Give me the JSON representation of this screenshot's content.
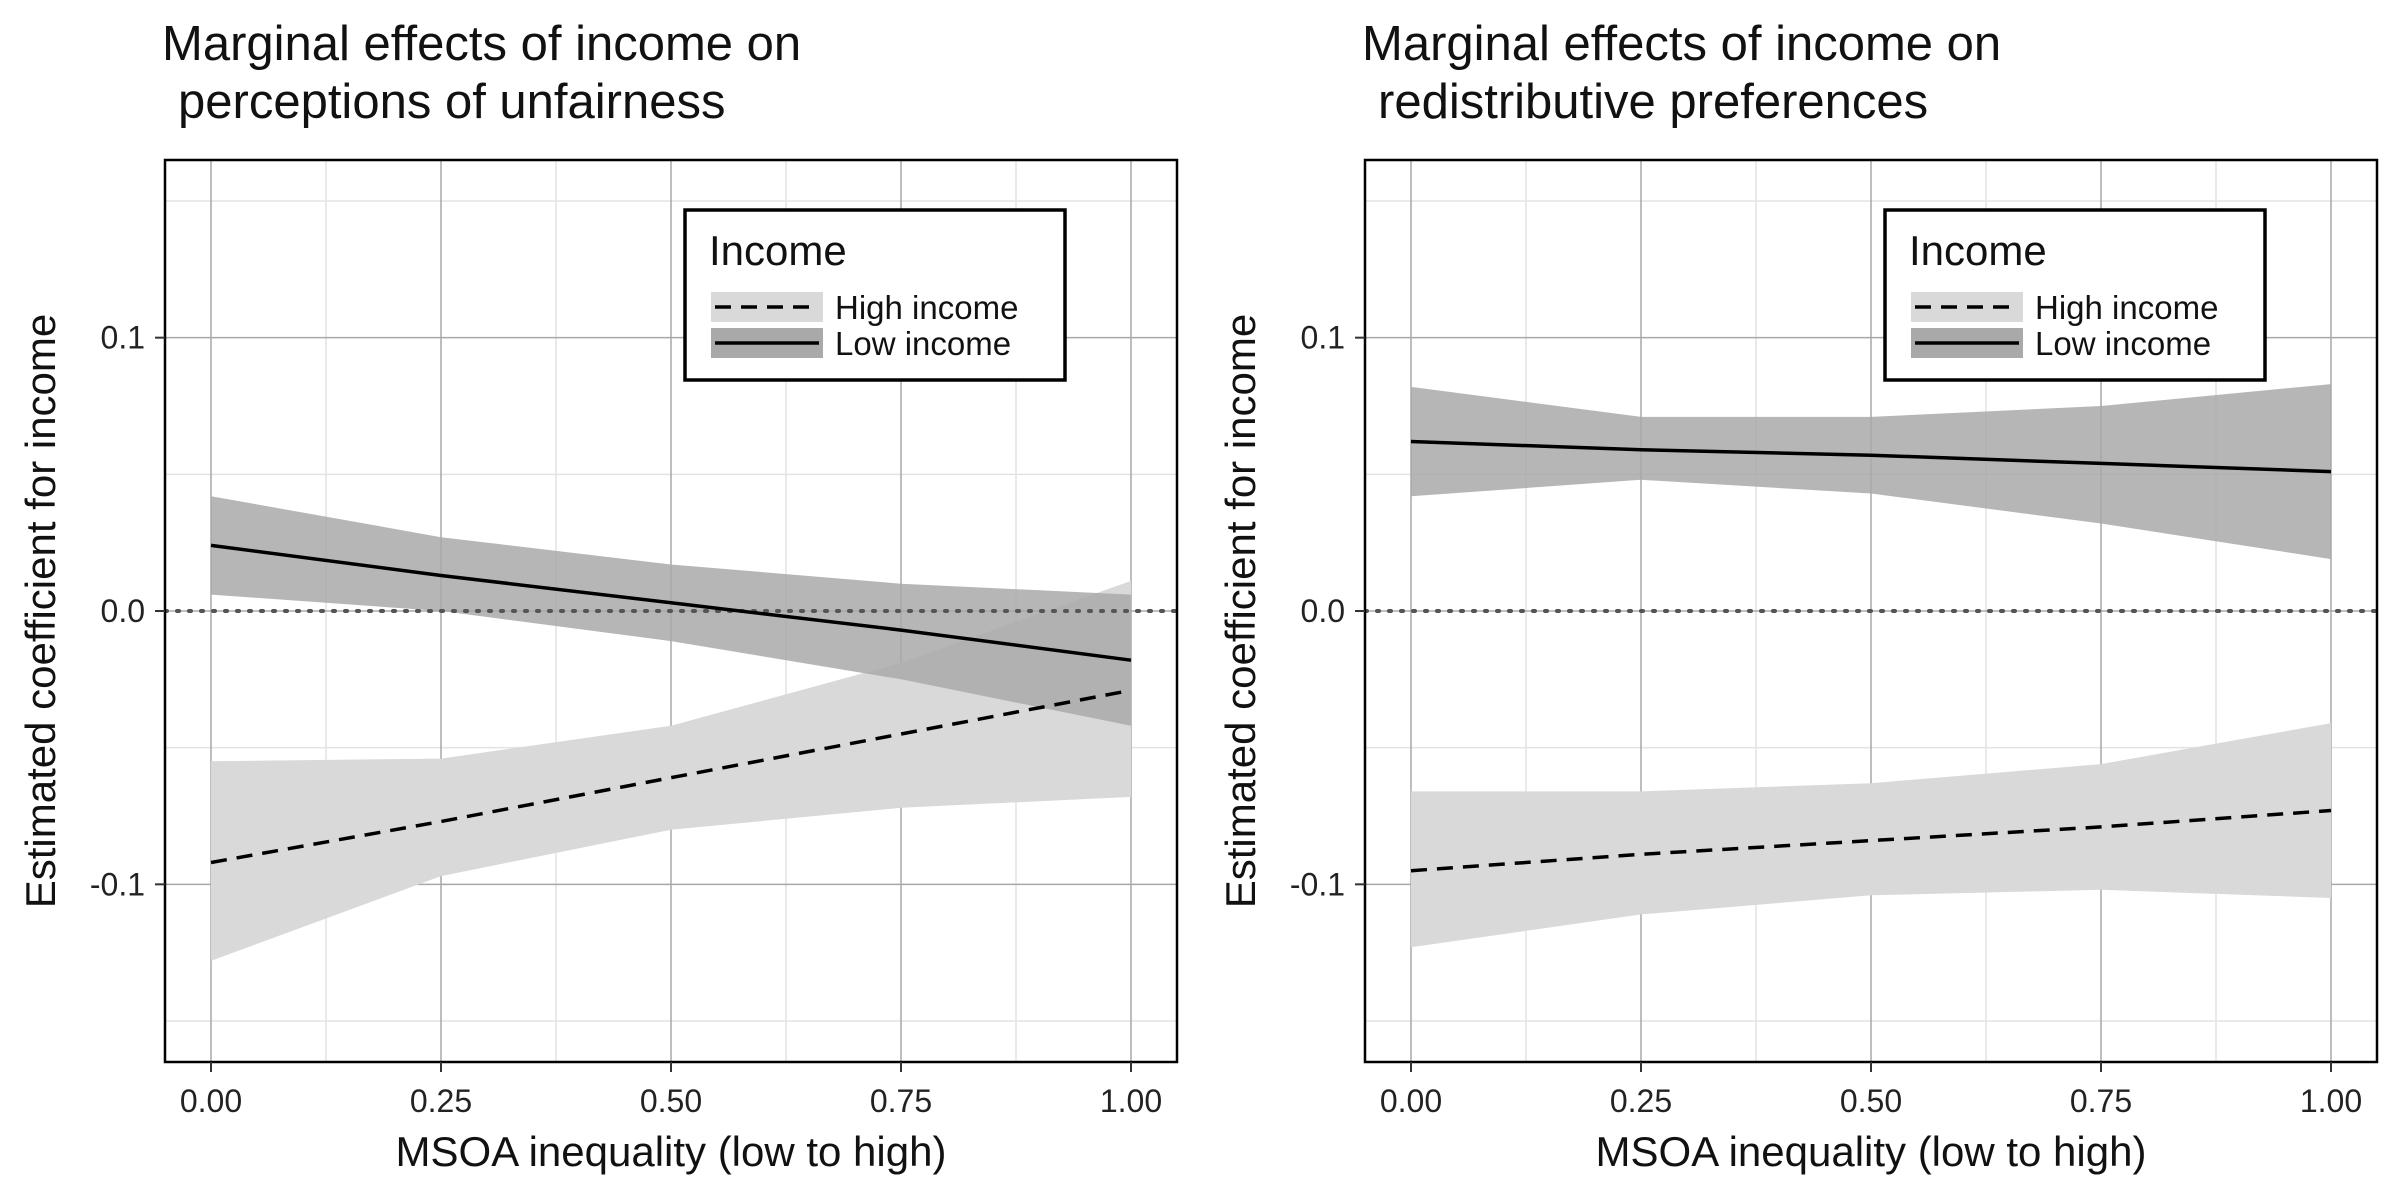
{
  "chart_data": [
    {
      "type": "line",
      "title": "Marginal effects of income on",
      "title_line2": "perceptions of unfairness",
      "xlabel": "MSOA inequality (low to high)",
      "ylabel": "Estimated coefficient for income",
      "xlim": [
        -0.05,
        1.05
      ],
      "ylim": [
        -0.165,
        0.165
      ],
      "x_ticks": [
        0,
        0.25,
        0.5,
        0.75,
        1
      ],
      "x_tick_labels": [
        "0.00",
        "0.25",
        "0.50",
        "0.75",
        "1.00"
      ],
      "y_ticks": [
        -0.1,
        0,
        0.1
      ],
      "y_tick_labels": [
        "-0.1",
        "0.0",
        "0.1"
      ],
      "grid": true,
      "reference_line": 0,
      "legend": {
        "title": "Income",
        "position": "top-right"
      },
      "series": [
        {
          "name": "High income",
          "style": "dashed",
          "band_color": "#d9d9d9",
          "x": [
            0,
            0.25,
            0.5,
            0.75,
            1
          ],
          "values": [
            -0.092,
            -0.077,
            -0.061,
            -0.045,
            -0.029
          ],
          "lower": [
            -0.128,
            -0.097,
            -0.08,
            -0.072,
            -0.068
          ],
          "upper": [
            -0.055,
            -0.054,
            -0.042,
            -0.019,
            0.011
          ]
        },
        {
          "name": "Low income",
          "style": "solid",
          "band_color": "#a9a9a9",
          "x": [
            0,
            0.25,
            0.5,
            0.75,
            1
          ],
          "values": [
            0.024,
            0.013,
            0.003,
            -0.007,
            -0.018
          ],
          "lower": [
            0.006,
            0.0,
            -0.011,
            -0.025,
            -0.042
          ],
          "upper": [
            0.042,
            0.027,
            0.017,
            0.01,
            0.006
          ]
        }
      ]
    },
    {
      "type": "line",
      "title": "Marginal effects of income on",
      "title_line2": "redistributive preferences",
      "xlabel": "MSOA inequality (low to high)",
      "ylabel": "Estimated coefficient for income",
      "xlim": [
        -0.05,
        1.05
      ],
      "ylim": [
        -0.165,
        0.165
      ],
      "x_ticks": [
        0,
        0.25,
        0.5,
        0.75,
        1
      ],
      "x_tick_labels": [
        "0.00",
        "0.25",
        "0.50",
        "0.75",
        "1.00"
      ],
      "y_ticks": [
        -0.1,
        0,
        0.1
      ],
      "y_tick_labels": [
        "-0.1",
        "0.0",
        "0.1"
      ],
      "grid": true,
      "reference_line": 0,
      "legend": {
        "title": "Income",
        "position": "top-right"
      },
      "series": [
        {
          "name": "High income",
          "style": "dashed",
          "band_color": "#d9d9d9",
          "x": [
            0,
            0.25,
            0.5,
            0.75,
            1
          ],
          "values": [
            -0.095,
            -0.089,
            -0.084,
            -0.079,
            -0.073
          ],
          "lower": [
            -0.123,
            -0.111,
            -0.104,
            -0.102,
            -0.105
          ],
          "upper": [
            -0.066,
            -0.066,
            -0.063,
            -0.056,
            -0.041
          ]
        },
        {
          "name": "Low income",
          "style": "solid",
          "band_color": "#a9a9a9",
          "x": [
            0,
            0.25,
            0.5,
            0.75,
            1
          ],
          "values": [
            0.062,
            0.059,
            0.057,
            0.054,
            0.051
          ],
          "lower": [
            0.042,
            0.048,
            0.043,
            0.032,
            0.019
          ],
          "upper": [
            0.082,
            0.071,
            0.071,
            0.075,
            0.083
          ]
        }
      ]
    }
  ]
}
